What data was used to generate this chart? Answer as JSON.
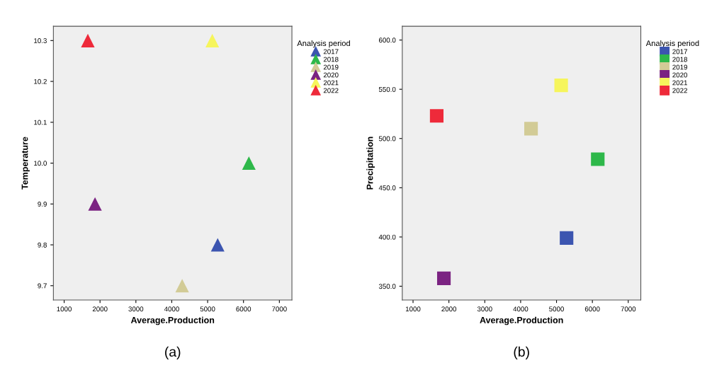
{
  "chart_data": [
    {
      "type": "scatter",
      "xlabel": "Average.Production",
      "ylabel": "Temperature",
      "legend_title": "Analysis period",
      "legend": "right",
      "marker": "triangle",
      "grid": false,
      "xlim": [
        700,
        7350
      ],
      "xticks": [
        1000,
        2000,
        3000,
        4000,
        5000,
        6000,
        7000
      ],
      "ylim": [
        9.665,
        10.335
      ],
      "yticks": [
        {
          "value": 9.7,
          "label": "9.7"
        },
        {
          "value": 9.8,
          "label": "9.8"
        },
        {
          "value": 9.9,
          "label": "9.9"
        },
        {
          "value": 10.0,
          "label": "10.0"
        },
        {
          "value": 10.1,
          "label": "10.1"
        },
        {
          "value": 10.2,
          "label": "10.2"
        },
        {
          "value": 10.3,
          "label": "10.3"
        }
      ],
      "annotations": [
        "(a)"
      ],
      "series": [
        {
          "name": "2017",
          "color": "#3c55b0",
          "x": [
            5280
          ],
          "values": [
            9.8
          ]
        },
        {
          "name": "2018",
          "color": "#2eb84a",
          "x": [
            6150
          ],
          "values": [
            10.0
          ]
        },
        {
          "name": "2019",
          "color": "#d2cb96",
          "x": [
            4290
          ],
          "values": [
            9.7
          ]
        },
        {
          "name": "2020",
          "color": "#7b2382",
          "x": [
            1860
          ],
          "values": [
            9.9
          ]
        },
        {
          "name": "2021",
          "color": "#f6f55c",
          "x": [
            5130
          ],
          "values": [
            10.3
          ]
        },
        {
          "name": "2022",
          "color": "#ee2a3a",
          "x": [
            1660
          ],
          "values": [
            10.3
          ]
        }
      ]
    },
    {
      "type": "scatter",
      "xlabel": "Average.Production",
      "ylabel": "Precipitation",
      "legend_title": "Analysis period",
      "legend": "right",
      "marker": "square",
      "grid": false,
      "xlim": [
        700,
        7350
      ],
      "xticks": [
        1000,
        2000,
        3000,
        4000,
        5000,
        6000,
        7000
      ],
      "ylim": [
        336,
        614
      ],
      "yticks": [
        {
          "value": 350,
          "label": "350.0"
        },
        {
          "value": 400,
          "label": "400.0"
        },
        {
          "value": 450,
          "label": "450.0"
        },
        {
          "value": 500,
          "label": "500.0"
        },
        {
          "value": 550,
          "label": "550.0"
        },
        {
          "value": 600,
          "label": "600.0"
        }
      ],
      "annotations": [
        "(b)"
      ],
      "series": [
        {
          "name": "2017",
          "color": "#3c55b0",
          "x": [
            5280
          ],
          "values": [
            399
          ]
        },
        {
          "name": "2018",
          "color": "#2eb84a",
          "x": [
            6150
          ],
          "values": [
            479
          ]
        },
        {
          "name": "2019",
          "color": "#d2cb96",
          "x": [
            4290
          ],
          "values": [
            510
          ]
        },
        {
          "name": "2020",
          "color": "#7b2382",
          "x": [
            1860
          ],
          "values": [
            358
          ]
        },
        {
          "name": "2021",
          "color": "#f6f55c",
          "x": [
            5130
          ],
          "values": [
            554
          ]
        },
        {
          "name": "2022",
          "color": "#ee2a3a",
          "x": [
            1660
          ],
          "values": [
            523
          ]
        }
      ]
    }
  ]
}
